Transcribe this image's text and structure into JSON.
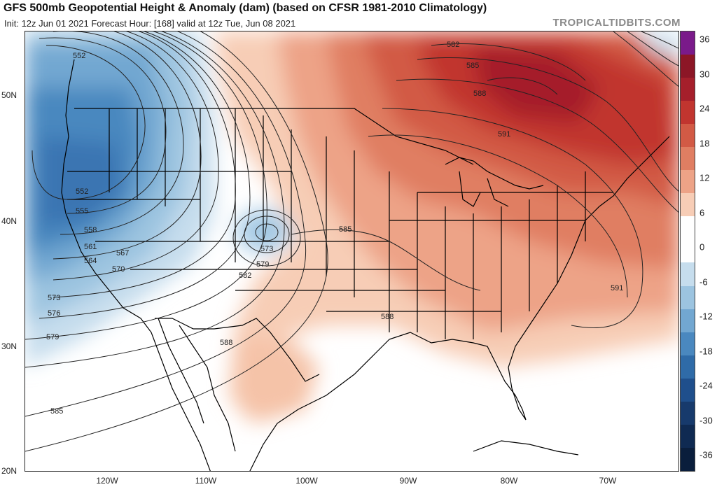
{
  "header": {
    "title": "GFS 500mb Geopotential Height & Anomaly (dam) (based on CFSR 1981-2010 Climatology)",
    "subtitle": "Init: 12z Jun 01 2021   Forecast Hour: [168]   valid at 12z Tue, Jun 08 2021",
    "brand": "TROPICALTIDBITS.COM"
  },
  "axes": {
    "lat_labels": [
      "50N",
      "40N",
      "30N",
      "20N"
    ],
    "lon_labels": [
      "120W",
      "110W",
      "100W",
      "90W",
      "80W",
      "70W"
    ]
  },
  "colorbar": {
    "labels": [
      "36",
      "30",
      "24",
      "18",
      "12",
      "6",
      "0",
      "-6",
      "-12",
      "-18",
      "-24",
      "-30",
      "-36"
    ],
    "colors": [
      "#7a1a8a",
      "#8c1626",
      "#a51f2b",
      "#c1352f",
      "#d25a45",
      "#e07e62",
      "#eda387",
      "#f7cdb6",
      "#ffffff",
      "#ffffff",
      "#c6dded",
      "#9cc4e0",
      "#72a7d1",
      "#4a88bf",
      "#2f6ba8",
      "#1f4f8c",
      "#173a6c",
      "#0f2a52",
      "#0a1e3c"
    ]
  },
  "contour_labels": [
    "552",
    "552",
    "555",
    "558",
    "561",
    "564",
    "567",
    "570",
    "573",
    "576",
    "579",
    "585",
    "573",
    "579",
    "582",
    "588",
    "585",
    "588",
    "582",
    "585",
    "588",
    "591",
    "591"
  ],
  "colors": {
    "land_outline": "#000000",
    "contour": "#222222",
    "warm_anomaly": "#d2503d",
    "cool_anomaly": "#3a7fbf"
  }
}
